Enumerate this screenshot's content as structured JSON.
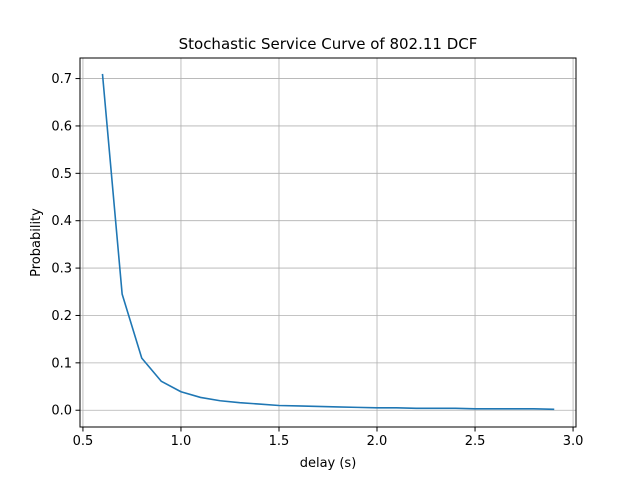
{
  "chart_data": {
    "type": "line",
    "title": "Stochastic Service Curve of 802.11 DCF",
    "xlabel": "delay (s)",
    "ylabel": "Probability",
    "xlim": [
      0.485,
      3.015
    ],
    "ylim": [
      -0.0354,
      0.7434
    ],
    "xticks": [
      0.5,
      1.0,
      1.5,
      2.0,
      2.5,
      3.0
    ],
    "xtick_labels": [
      "0.5",
      "1.0",
      "1.5",
      "2.0",
      "2.5",
      "3.0"
    ],
    "yticks": [
      0.0,
      0.1,
      0.2,
      0.3,
      0.4,
      0.5,
      0.6,
      0.7
    ],
    "ytick_labels": [
      "0.0",
      "0.1",
      "0.2",
      "0.3",
      "0.4",
      "0.5",
      "0.6",
      "0.7"
    ],
    "grid": true,
    "series": [
      {
        "color": "#1f77b4",
        "x": [
          0.6,
          0.7,
          0.8,
          0.9,
          1.0,
          1.1,
          1.2,
          1.3,
          1.4,
          1.5,
          1.6,
          1.7,
          1.8,
          1.9,
          2.0,
          2.1,
          2.2,
          2.3,
          2.4,
          2.5,
          2.6,
          2.7,
          2.8,
          2.9
        ],
        "y": [
          0.708,
          0.245,
          0.11,
          0.061,
          0.039,
          0.027,
          0.02,
          0.016,
          0.013,
          0.01,
          0.009,
          0.008,
          0.007,
          0.006,
          0.005,
          0.005,
          0.004,
          0.004,
          0.004,
          0.003,
          0.003,
          0.003,
          0.003,
          0.002
        ]
      }
    ]
  }
}
